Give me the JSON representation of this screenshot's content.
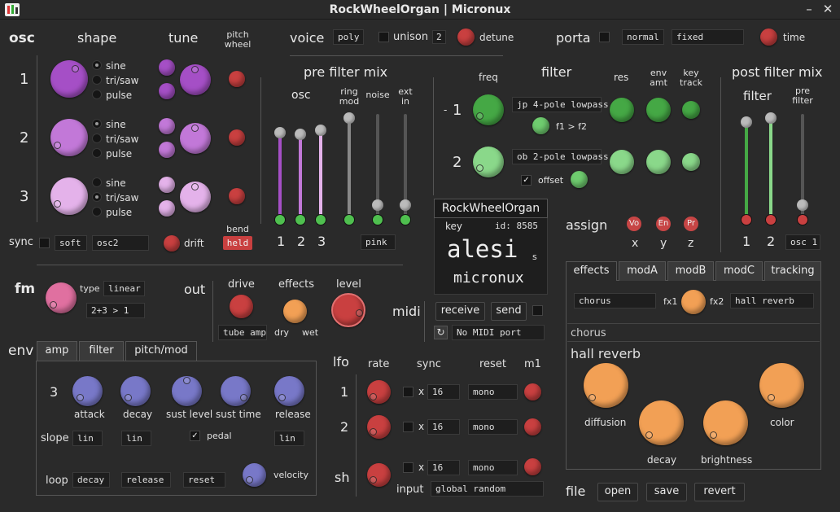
{
  "window": {
    "title": "RockWheelOrgan | Micronux",
    "min": "–",
    "close": "✕",
    "app_icon": "equalizer-icon"
  },
  "osc": {
    "header": "osc",
    "shape": "shape",
    "tune": "tune",
    "pitch_wheel": "pitch wheel",
    "rows": [
      "1",
      "2",
      "3"
    ],
    "shapes1": [
      "sine",
      "tri/saw",
      "pulse"
    ],
    "shapes2": [
      "sine",
      "tri/saw",
      "pulse"
    ],
    "shapes3": [
      "sine",
      "tri/saw",
      "pulse"
    ],
    "sync": "sync",
    "sync_mode": "soft",
    "sync_src": "osc2",
    "drift": "drift",
    "bend": "bend",
    "bend_mode": "held"
  },
  "voice": {
    "header": "voice",
    "mode": "poly",
    "unison": "unison",
    "unison_count": "2",
    "detune": "detune"
  },
  "porta": {
    "header": "porta",
    "mode": "normal",
    "type": "fixed",
    "time": "time"
  },
  "prefilter": {
    "header": "pre filter mix",
    "osc": "osc",
    "ring_mod": "ring mod",
    "noise": "noise",
    "ext_in": "ext in",
    "labels": [
      "1",
      "2",
      "3"
    ],
    "noise_type": "pink"
  },
  "filter": {
    "header": "filter",
    "freq": "freq",
    "res": "res",
    "env_amt": "env amt",
    "key_track": "key track",
    "rows": [
      "1",
      "2"
    ],
    "minus": "-",
    "type1": "jp 4-pole lowpass",
    "type2": "ob 2-pole lowpass",
    "f1f2": "f1 > f2",
    "offset": "offset"
  },
  "postfilter": {
    "header": "post filter mix",
    "filter": "filter",
    "pre_filter": "pre filter",
    "labels": [
      "1",
      "2"
    ],
    "out": "osc 1"
  },
  "preset": {
    "name": "RockWheelOrgan",
    "key": "key",
    "id": "id: 8585",
    "author": "alesi",
    "s": "s",
    "synth": "micronux"
  },
  "assign": {
    "header": "assign",
    "badges": [
      "Vo",
      "En",
      "Pr"
    ],
    "labels": [
      "x",
      "y",
      "z"
    ]
  },
  "fm": {
    "header": "fm",
    "type": "type",
    "type_val": "linear",
    "routing": "2+3 > 1"
  },
  "out": {
    "header": "out",
    "drive": "drive",
    "effects": "effects",
    "level": "level",
    "drive_type": "tube amp",
    "dry": "dry",
    "wet": "wet"
  },
  "midi": {
    "header": "midi",
    "receive": "receive",
    "send": "send",
    "port": "No MIDI port"
  },
  "fxtabs": [
    "effects",
    "modA",
    "modB",
    "modC",
    "tracking"
  ],
  "fx": {
    "fx1_val": "chorus",
    "fx1": "fx1",
    "fx2": "fx2",
    "fx2_val": "hall reverb",
    "chorus": "chorus",
    "hall": "hall reverb",
    "diffusion": "diffusion",
    "decay": "decay",
    "brightness": "brightness",
    "color": "color"
  },
  "env": {
    "header": "env",
    "tabs": [
      "amp",
      "filter",
      "pitch/mod"
    ],
    "num": "3",
    "knobs": [
      "attack",
      "decay",
      "sust level",
      "sust time",
      "release"
    ],
    "slope": "slope",
    "slopes": [
      "lin",
      "lin",
      "lin"
    ],
    "pedal": "pedal",
    "loop": "loop",
    "loop_vals": [
      "decay",
      "release",
      "reset"
    ],
    "velocity": "velocity"
  },
  "lfo": {
    "header": "lfo",
    "rate": "rate",
    "sync": "sync",
    "reset": "reset",
    "m1": "m1",
    "rows": [
      "1",
      "2"
    ],
    "x": "x",
    "vals": [
      "16",
      "16",
      "16"
    ],
    "modes": [
      "mono",
      "mono",
      "mono"
    ],
    "sh": "sh",
    "input": "input",
    "input_val": "global random"
  },
  "file": {
    "header": "file",
    "open": "open",
    "save": "save",
    "revert": "revert"
  },
  "colors": {
    "bg": "#2a2a2a",
    "purple": "#b05ad0",
    "green": "#4fbf4f",
    "red": "#c94040",
    "orange": "#f2a055",
    "blue": "#7878c8"
  }
}
